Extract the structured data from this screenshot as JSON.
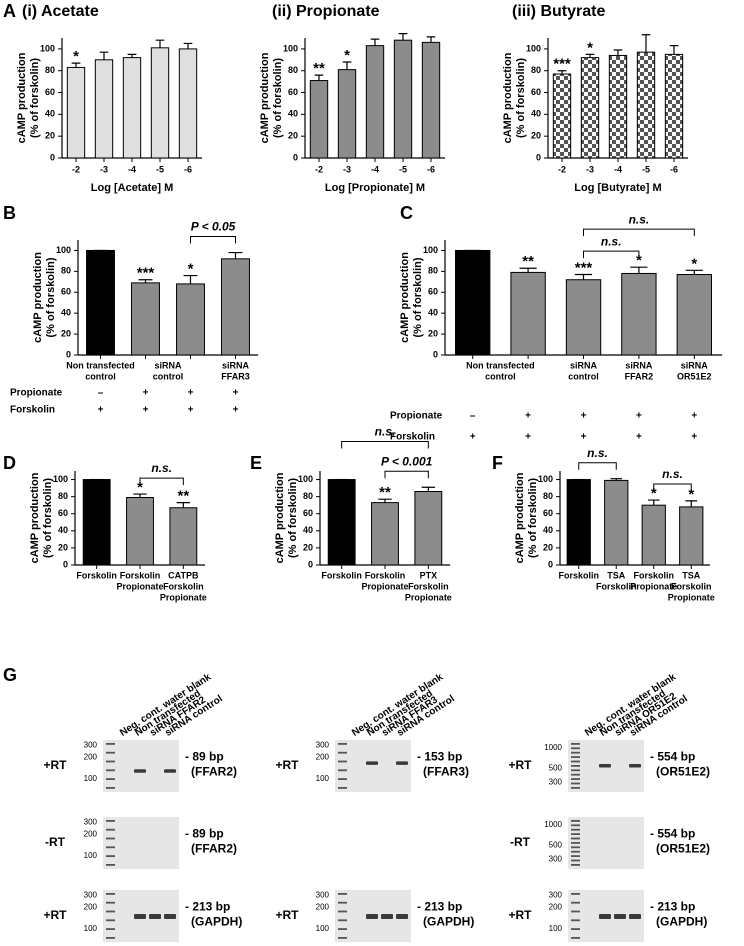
{
  "chart_data": [
    {
      "type": "bar",
      "panel": "A",
      "title": "(i) Acetate",
      "xlabel": "Log [Acetate] M",
      "ylabel": [
        "cAMP production",
        "(% of forskolin)"
      ],
      "categories": [
        "-2",
        "-3",
        "-4",
        "-5",
        "-6"
      ],
      "values": [
        83,
        90,
        92,
        101,
        100
      ],
      "errors": [
        4,
        7,
        3,
        7,
        5
      ],
      "annotations": [
        "*",
        null,
        null,
        null,
        null
      ],
      "colors": [
        "#e0e0e0",
        "#e0e0e0",
        "#e0e0e0",
        "#e0e0e0",
        "#e0e0e0"
      ],
      "ylim": [
        0,
        110
      ],
      "yticks": [
        0,
        20,
        40,
        60,
        80,
        100
      ]
    },
    {
      "type": "bar",
      "title": "(ii) Propionate",
      "xlabel": "Log [Propionate] M",
      "ylabel": [
        "cAMP production",
        "(% of forskolin)"
      ],
      "categories": [
        "-2",
        "-3",
        "-4",
        "-5",
        "-6"
      ],
      "values": [
        71,
        81,
        103,
        108,
        106
      ],
      "errors": [
        5,
        7,
        6,
        6,
        5
      ],
      "annotations": [
        "**",
        "*",
        null,
        null,
        null
      ],
      "colors": [
        "#8c8c8c",
        "#8c8c8c",
        "#8c8c8c",
        "#8c8c8c",
        "#8c8c8c"
      ],
      "ylim": [
        0,
        110
      ],
      "yticks": [
        0,
        20,
        40,
        60,
        80,
        100
      ]
    },
    {
      "type": "bar",
      "title": "(iii) Butyrate",
      "xlabel": "Log [Butyrate] M",
      "ylabel": [
        "cAMP production",
        "(% of forskolin)"
      ],
      "categories": [
        "-2",
        "-3",
        "-4",
        "-5",
        "-6"
      ],
      "values": [
        77,
        92,
        94,
        97,
        95
      ],
      "errors": [
        3,
        3,
        5,
        16,
        8
      ],
      "annotations": [
        "***",
        "*",
        null,
        null,
        null
      ],
      "pattern": "checkerboard",
      "ylim": [
        0,
        110
      ],
      "yticks": [
        0,
        20,
        40,
        60,
        80,
        100
      ]
    },
    {
      "type": "bar",
      "panel": "B",
      "ylabel": [
        "cAMP production",
        "(% of forskolin)"
      ],
      "categories": [
        [
          "Non transfected",
          "control"
        ],
        [
          "siRNA",
          "control"
        ],
        null,
        [
          "siRNA",
          "FFAR3"
        ]
      ],
      "values": [
        100,
        69,
        68,
        92
      ],
      "errors": [
        0,
        3,
        8,
        6
      ],
      "annotations": [
        null,
        "***",
        "*",
        null
      ],
      "colors": [
        "#000000",
        "#8c8c8c",
        "#8c8c8c",
        "#8c8c8c"
      ],
      "brackets": [
        {
          "from": 2,
          "to": 3,
          "label": "P < 0.05"
        }
      ],
      "conditions": [
        {
          "name": "Propionate",
          "values": [
            "–",
            "+",
            "+",
            "+"
          ]
        },
        {
          "name": "Forskolin",
          "values": [
            "+",
            "+",
            "+",
            "+"
          ]
        }
      ],
      "ylim": [
        0,
        110
      ],
      "yticks": [
        0,
        20,
        40,
        60,
        80,
        100
      ]
    },
    {
      "type": "bar",
      "panel": "C",
      "ylabel": [
        "cAMP production",
        "(% of forskolin)"
      ],
      "categories": [
        [
          "Non transfected",
          "control"
        ],
        null,
        [
          "siRNA",
          "control"
        ],
        [
          "siRNA",
          "FFAR2"
        ],
        [
          "siRNA",
          "OR51E2"
        ]
      ],
      "values": [
        100,
        79,
        72,
        78,
        77
      ],
      "errors": [
        0,
        4,
        5,
        6,
        4
      ],
      "annotations": [
        null,
        "**",
        "***",
        "*",
        "*"
      ],
      "colors": [
        "#000000",
        "#8c8c8c",
        "#8c8c8c",
        "#8c8c8c",
        "#8c8c8c"
      ],
      "brackets": [
        {
          "from": 2,
          "to": 3,
          "label": "n.s."
        },
        {
          "from": 2,
          "to": 4,
          "label": "n.s."
        }
      ],
      "conditions": [
        {
          "name": "Propionate",
          "values": [
            "–",
            "+",
            "+",
            "+",
            "+"
          ]
        },
        {
          "name": "Forskolin",
          "values": [
            "+",
            "+",
            "+",
            "+",
            "+"
          ]
        }
      ],
      "ylim": [
        0,
        110
      ],
      "yticks": [
        0,
        20,
        40,
        60,
        80,
        100
      ]
    },
    {
      "type": "bar",
      "panel": "D",
      "ylabel": [
        "cAMP production",
        "(% of forskolin)"
      ],
      "categories": [
        [
          "Forskolin"
        ],
        [
          "Forskolin",
          "Propionate"
        ],
        [
          "CATPB",
          "Forskolin",
          "Propionate"
        ]
      ],
      "values": [
        100,
        79,
        67
      ],
      "errors": [
        0,
        4,
        6
      ],
      "annotations": [
        null,
        "*",
        "**"
      ],
      "colors": [
        "#000000",
        "#8c8c8c",
        "#8c8c8c"
      ],
      "brackets": [
        {
          "from": 1,
          "to": 2,
          "label": "n.s."
        }
      ],
      "ylim": [
        0,
        110
      ],
      "yticks": [
        0,
        20,
        40,
        60,
        80,
        100
      ]
    },
    {
      "type": "bar",
      "panel": "E",
      "ylabel": [
        "cAMP production",
        "(% of forskolin)"
      ],
      "categories": [
        [
          "Forskolin"
        ],
        [
          "Forskolin",
          "Propionate"
        ],
        [
          "PTX",
          "Forskolin",
          "Propionate"
        ]
      ],
      "values": [
        100,
        73,
        86
      ],
      "errors": [
        0,
        4,
        5
      ],
      "annotations": [
        null,
        "**",
        null
      ],
      "colors": [
        "#000000",
        "#8c8c8c",
        "#8c8c8c"
      ],
      "brackets": [
        {
          "from": 1,
          "to": 2,
          "label": "P < 0.001"
        },
        {
          "from": 0,
          "to": 2,
          "label": "n.s."
        }
      ],
      "ylim": [
        0,
        110
      ],
      "yticks": [
        0,
        20,
        40,
        60,
        80,
        100
      ]
    },
    {
      "type": "bar",
      "panel": "F",
      "ylabel": [
        "cAMP production",
        "(% of forskolin)"
      ],
      "categories": [
        [
          "Forskolin"
        ],
        [
          "TSA",
          "Forskolin"
        ],
        [
          "Forskolin",
          "Propionate"
        ],
        [
          "TSA",
          "Forskolin",
          "Propionate"
        ]
      ],
      "values": [
        100,
        99,
        70,
        68
      ],
      "errors": [
        0,
        2,
        6,
        7
      ],
      "annotations": [
        null,
        null,
        "*",
        "*"
      ],
      "colors": [
        "#000000",
        "#8c8c8c",
        "#8c8c8c",
        "#8c8c8c"
      ],
      "brackets": [
        {
          "from": 0,
          "to": 1,
          "label": "n.s."
        },
        {
          "from": 2,
          "to": 3,
          "label": "n.s."
        }
      ],
      "ylim": [
        0,
        110
      ],
      "yticks": [
        0,
        20,
        40,
        60,
        80,
        100
      ]
    }
  ],
  "panel_g": {
    "panel": "G",
    "columns": [
      {
        "lanes": [
          "Neg. cont. water blank",
          "Non transfected",
          "siRNA FFAR2",
          "siRNA control"
        ],
        "gels": [
          {
            "row_label": "+RT",
            "ladder": [
              300,
              200,
              100
            ],
            "band": [
              "- 89 bp",
              "(FFAR2)"
            ]
          },
          {
            "row_label": "-RT",
            "ladder": [
              300,
              200,
              100
            ],
            "band": [
              "- 89 bp",
              "(FFAR2)"
            ]
          },
          {
            "row_label": "+RT",
            "ladder": [
              300,
              200,
              100
            ],
            "band": [
              "- 213 bp",
              "(GAPDH)"
            ]
          }
        ]
      },
      {
        "lanes": [
          "Neg. cont. water blank",
          "Non transfected",
          "siRNA FFAR3",
          "siRNA control"
        ],
        "gels": [
          {
            "row_label": "+RT",
            "ladder": [
              300,
              200,
              100
            ],
            "band": [
              "- 153 bp",
              "(FFAR3)"
            ]
          },
          {
            "row_label": "+RT",
            "ladder": [
              300,
              200,
              100
            ],
            "band": [
              "- 213 bp",
              "(GAPDH)"
            ]
          }
        ]
      },
      {
        "lanes": [
          "Neg. cont. water blank",
          "Non transfected",
          "siRNA OR51E2",
          "siRNA control"
        ],
        "gels": [
          {
            "row_label": "+RT",
            "ladder": [
              1000,
              500,
              300
            ],
            "band": [
              "- 554 bp",
              "(OR51E2)"
            ]
          },
          {
            "row_label": "-RT",
            "ladder": [
              1000,
              500,
              300
            ],
            "band": [
              "- 554 bp",
              "(OR51E2)"
            ]
          },
          {
            "row_label": "+RT",
            "ladder": [
              300,
              200,
              100
            ],
            "band": [
              "- 213 bp",
              "(GAPDH)"
            ]
          }
        ]
      }
    ]
  }
}
